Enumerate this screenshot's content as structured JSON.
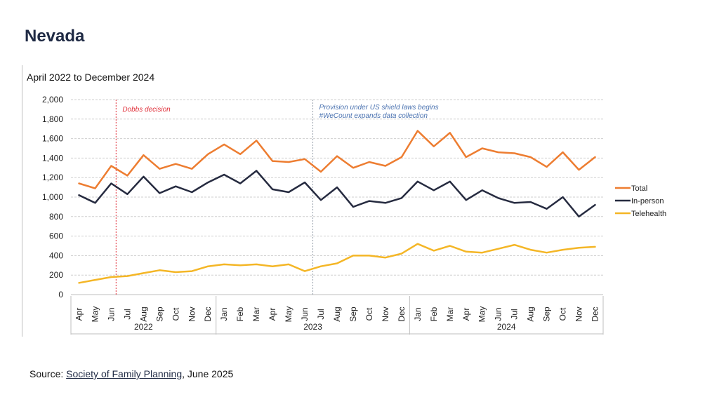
{
  "page": {
    "title": "Nevada"
  },
  "source": {
    "prefix": "Source: ",
    "link_text": "Society of Family Planning",
    "suffix": ", June 2025"
  },
  "colors": {
    "total": "#ed7d31",
    "in_person": "#262b40",
    "telehealth": "#f4b626",
    "dobbs": "#e0303a",
    "shield": "#4a72b0"
  },
  "chart_data": {
    "type": "line",
    "title": "April 2022 to December 2024",
    "months": [
      "Apr",
      "May",
      "Jun",
      "Jul",
      "Aug",
      "Sep",
      "Oct",
      "Nov",
      "Dec",
      "Jan",
      "Feb",
      "Mar",
      "Apr",
      "May",
      "Jun",
      "Jul",
      "Aug",
      "Sep",
      "Oct",
      "Nov",
      "Dec",
      "Jan",
      "Feb",
      "Mar",
      "Apr",
      "May",
      "Jun",
      "Jul",
      "Aug",
      "Sep",
      "Oct",
      "Nov",
      "Dec"
    ],
    "years": [
      {
        "label": "2022",
        "start": 0,
        "end": 8
      },
      {
        "label": "2023",
        "start": 9,
        "end": 20
      },
      {
        "label": "2024",
        "start": 21,
        "end": 32
      }
    ],
    "ylim": [
      0,
      2000
    ],
    "yticks": [
      0,
      200,
      400,
      600,
      800,
      1000,
      1200,
      1400,
      1600,
      1800,
      2000
    ],
    "ytick_labels": [
      "0",
      "200",
      "400",
      "600",
      "800",
      "1,000",
      "1,200",
      "1,400",
      "1,600",
      "1,800",
      "2,000"
    ],
    "grid": true,
    "series": [
      {
        "name": "Total",
        "color_key": "total",
        "values": [
          1140,
          1090,
          1320,
          1220,
          1430,
          1290,
          1340,
          1290,
          1440,
          1540,
          1440,
          1580,
          1370,
          1360,
          1390,
          1260,
          1420,
          1300,
          1360,
          1320,
          1410,
          1680,
          1520,
          1660,
          1410,
          1500,
          1460,
          1450,
          1410,
          1310,
          1460,
          1280,
          1410
        ]
      },
      {
        "name": "In-person",
        "color_key": "in_person",
        "values": [
          1020,
          940,
          1140,
          1030,
          1210,
          1040,
          1110,
          1050,
          1150,
          1230,
          1140,
          1270,
          1080,
          1050,
          1150,
          970,
          1100,
          900,
          960,
          940,
          990,
          1160,
          1070,
          1160,
          970,
          1070,
          990,
          940,
          950,
          880,
          1000,
          800,
          920
        ]
      },
      {
        "name": "Telehealth",
        "color_key": "telehealth",
        "values": [
          120,
          150,
          180,
          190,
          220,
          250,
          230,
          240,
          290,
          310,
          300,
          310,
          290,
          310,
          240,
          290,
          320,
          400,
          400,
          380,
          420,
          520,
          450,
          500,
          440,
          430,
          470,
          510,
          460,
          430,
          460,
          480,
          490
        ]
      }
    ],
    "legend_position": "right",
    "annotations": [
      {
        "text": "Dobbs decision",
        "at_index": 2.3,
        "color_key": "dobbs"
      },
      {
        "text": "Provision under US shield laws begins",
        "text2": "#WeCount expands data collection",
        "at_index": 14.5,
        "color_key": "shield"
      }
    ]
  }
}
